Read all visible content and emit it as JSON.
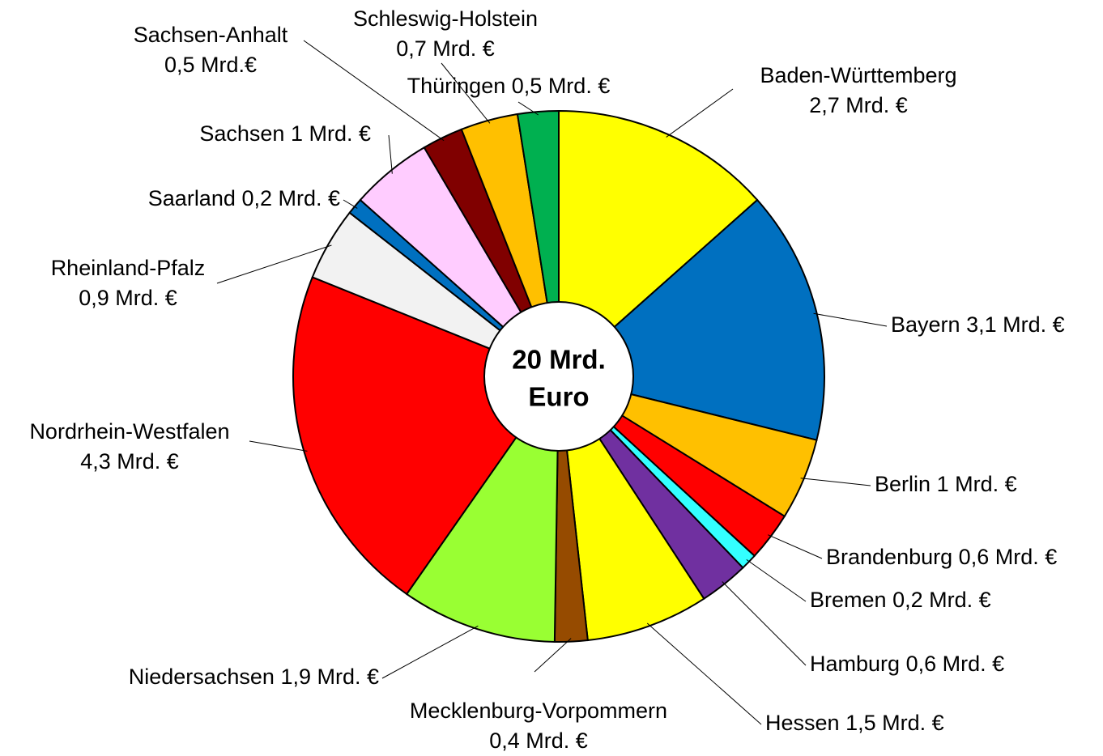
{
  "chart_data": {
    "type": "pie",
    "categories": [
      "Baden-Württemberg",
      "Bayern",
      "Berlin",
      "Brandenburg",
      "Bremen",
      "Hamburg",
      "Hessen",
      "Mecklenburg-Vorpommern",
      "Niedersachsen",
      "Nordrhein-Westfalen",
      "Rheinland-Pfalz",
      "Saarland",
      "Sachsen",
      "Sachsen-Anhalt",
      "Schleswig-Holstein",
      "Thüringen"
    ],
    "values": [
      2.7,
      3.1,
      1,
      0.6,
      0.2,
      0.6,
      1.5,
      0.4,
      1.9,
      4.3,
      0.9,
      0.2,
      1,
      0.5,
      0.7,
      0.5
    ],
    "value_labels": [
      "2,7 Mrd. €",
      "3,1 Mrd. €",
      "1 Mrd. €",
      "0,6 Mrd. €",
      "0,2 Mrd. €",
      "0,6 Mrd. €",
      "1,5 Mrd. €",
      "0,4 Mrd. €",
      "1,9 Mrd. €",
      "4,3 Mrd. €",
      "0,9 Mrd. €",
      "0,2 Mrd. €",
      "1 Mrd. €",
      "0,5 Mrd.€",
      "0,7 Mrd. €",
      "0,5 Mrd. €"
    ],
    "colors": [
      "#ffff00",
      "#0070c0",
      "#ffc000",
      "#ff0000",
      "#33ffff",
      "#7030a0",
      "#ffff00",
      "#964b00",
      "#99ff33",
      "#ff0000",
      "#f2f2f2",
      "#0070c0",
      "#ffccff",
      "#800000",
      "#ffc000",
      "#00b050"
    ],
    "center_label": [
      "20 Mrd.",
      "Euro"
    ]
  }
}
